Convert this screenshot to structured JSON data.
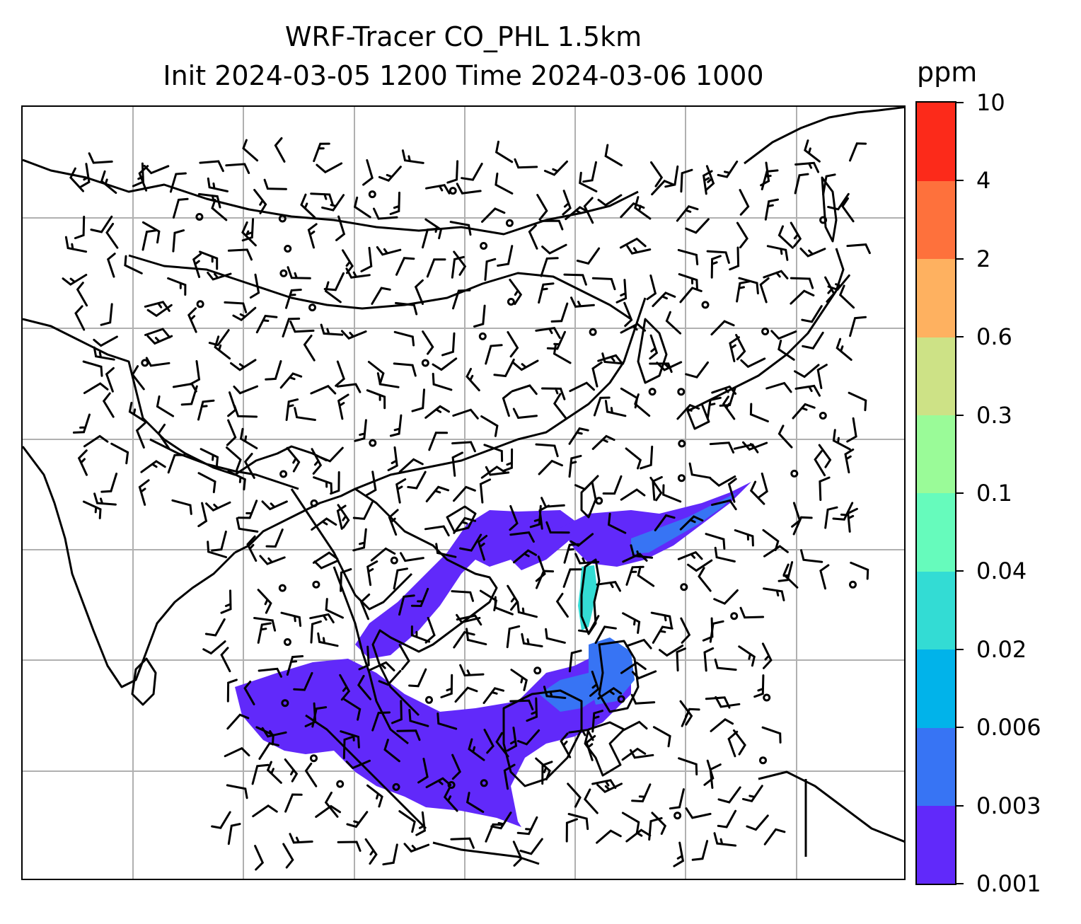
{
  "title": {
    "line1": "WRF-Tracer CO_PHL 1.5km",
    "line2": "Init 2024-03-05 1200 Time 2024-03-06 1000"
  },
  "colorbar": {
    "unit": "ppm",
    "levels": [
      "0.001",
      "0.003",
      "0.006",
      "0.02",
      "0.04",
      "0.1",
      "0.3",
      "0.6",
      "2",
      "4",
      "10"
    ],
    "colors": [
      "#6129fa",
      "#3774f4",
      "#01b3ea",
      "#33dcd4",
      "#66fbbc",
      "#9afb98",
      "#cde286",
      "#feb160",
      "#fe713c",
      "#fc2a1a"
    ]
  },
  "map": {
    "gridlines": true,
    "gridline_color": "#b0b0b0",
    "coastline_color": "#000000",
    "wind_barb_color": "#000000",
    "plume_fill": "#6129fa",
    "plume_core": "#3774f4",
    "plume_peak": "#33dcd4"
  }
}
